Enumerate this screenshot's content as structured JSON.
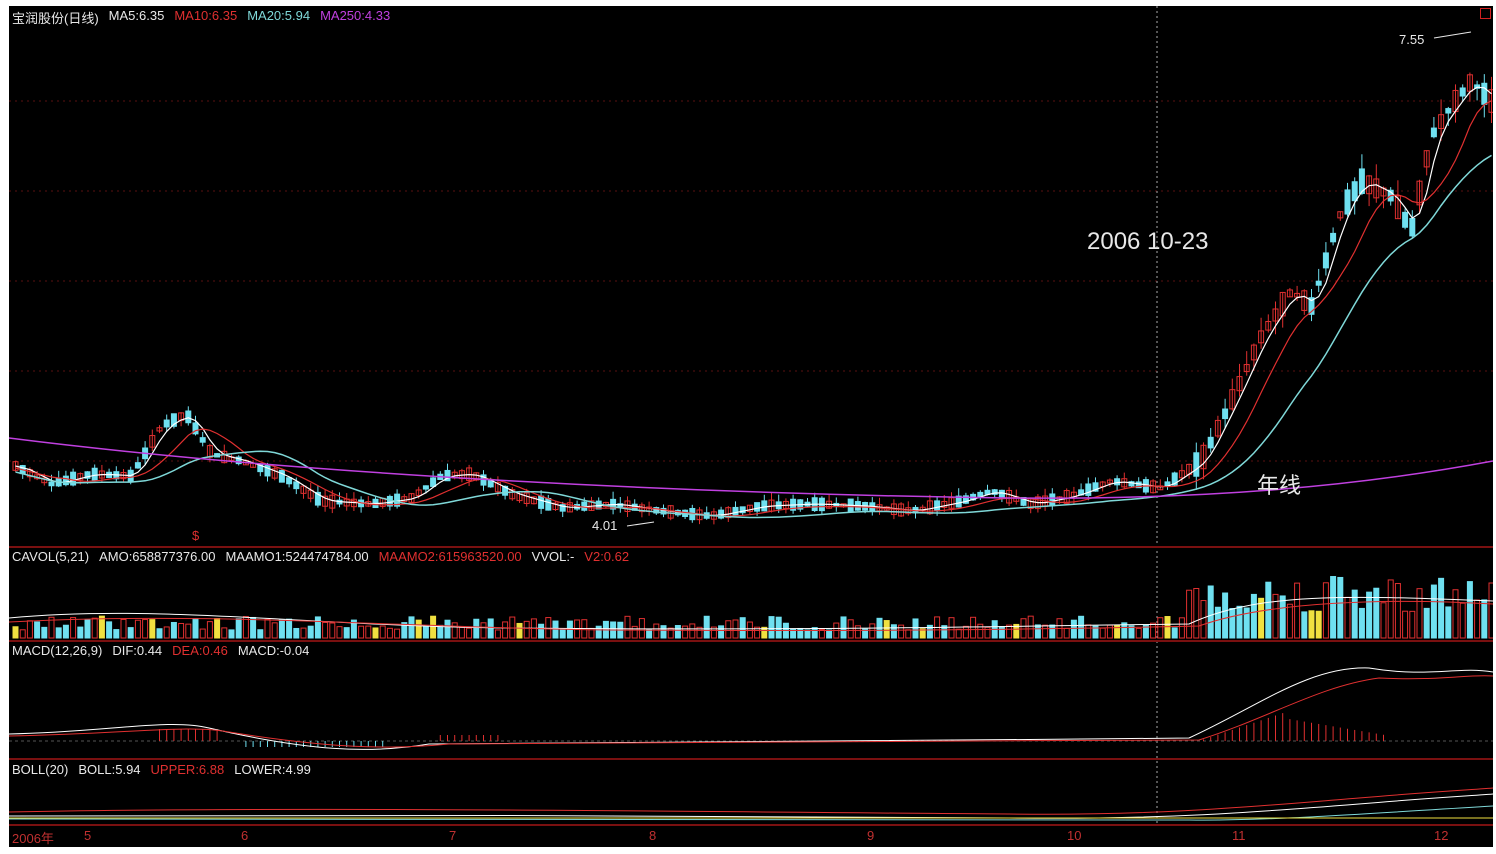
{
  "main": {
    "title": "宝润股份(日线)",
    "ma5": "MA5:6.35",
    "ma10": "MA10:6.35",
    "ma20": "MA20:5.94",
    "ma250": "MA250:4.33",
    "annotation_date": "2006 10-23",
    "annotation_yearline": "年线",
    "price_high": "7.55",
    "price_low": "4.01",
    "marker": "$"
  },
  "cavol": {
    "label": "CAVOL(5,21)",
    "amo": "AMO:658877376.00",
    "maamo1": "MAAMO1:524474784.00",
    "maamo2": "MAAMO2:615963520.00",
    "vvol": "VVOL:-",
    "v2": "V2:0.62"
  },
  "macd": {
    "label": "MACD(12,26,9)",
    "dif": "DIF:0.44",
    "dea": "DEA:0.46",
    "macd": "MACD:-0.04"
  },
  "boll": {
    "label": "BOLL(20)",
    "boll": "BOLL:5.94",
    "upper": "UPPER:6.88",
    "lower": "LOWER:4.99"
  },
  "xaxis": {
    "labels": [
      "2006年",
      "5",
      "6",
      "7",
      "8",
      "9",
      "10",
      "11",
      "12"
    ]
  },
  "colors": {
    "up": "#e03030",
    "down": "#6fe0f0",
    "ma5": "#ffffff",
    "ma10": "#e03030",
    "ma20": "#7fd8d8",
    "ma250": "#c040e0",
    "yellow": "#f0e040",
    "grid": "#7a1010"
  }
}
